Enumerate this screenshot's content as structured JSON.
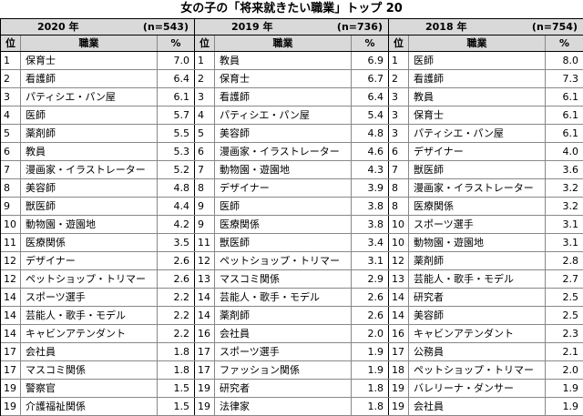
{
  "title": "女の子の「将来就きたい職業」トップ 20",
  "tables": [
    {
      "year": "2020 年",
      "n": "(n=543)",
      "columns": [
        "位",
        "職業",
        "%"
      ],
      "rows": [
        [
          "1",
          "保育士",
          "7.0"
        ],
        [
          "2",
          "看護師",
          "6.4"
        ],
        [
          "3",
          "パティシエ・パン屋",
          "6.1"
        ],
        [
          "4",
          "医師",
          "5.7"
        ],
        [
          "5",
          "薬剤師",
          "5.5"
        ],
        [
          "6",
          "教員",
          "5.3"
        ],
        [
          "7",
          "漫画家・イラストレーター",
          "5.2"
        ],
        [
          "8",
          "美容師",
          "4.8"
        ],
        [
          "9",
          "獣医師",
          "4.4"
        ],
        [
          "10",
          "動物園・遊園地",
          "4.2"
        ],
        [
          "11",
          "医療関係",
          "3.5"
        ],
        [
          "12",
          "デザイナー",
          "2.6"
        ],
        [
          "12",
          "ペットショップ・トリマー",
          "2.6"
        ],
        [
          "14",
          "スポーツ選手",
          "2.2"
        ],
        [
          "14",
          "芸能人・歌手・モデル",
          "2.2"
        ],
        [
          "14",
          "キャビンアテンダント",
          "2.2"
        ],
        [
          "17",
          "会社員",
          "1.8"
        ],
        [
          "17",
          "マスコミ関係",
          "1.8"
        ],
        [
          "19",
          "警察官",
          "1.5"
        ],
        [
          "19",
          "介護福祉関係",
          "1.5"
        ]
      ]
    },
    {
      "year": "2019 年",
      "n": "(n=736)",
      "columns": [
        "位",
        "職業",
        "%"
      ],
      "rows": [
        [
          "1",
          "教員",
          "6.9"
        ],
        [
          "2",
          "保育士",
          "6.7"
        ],
        [
          "3",
          "看護師",
          "6.4"
        ],
        [
          "4",
          "パティシエ・パン屋",
          "5.4"
        ],
        [
          "5",
          "美容師",
          "4.8"
        ],
        [
          "6",
          "漫画家・イラストレーター",
          "4.6"
        ],
        [
          "7",
          "動物園・遊園地",
          "4.3"
        ],
        [
          "8",
          "デザイナー",
          "3.9"
        ],
        [
          "9",
          "医師",
          "3.8"
        ],
        [
          "9",
          "医療関係",
          "3.8"
        ],
        [
          "11",
          "獣医師",
          "3.4"
        ],
        [
          "12",
          "ペットショップ・トリマー",
          "3.1"
        ],
        [
          "13",
          "マスコミ関係",
          "2.9"
        ],
        [
          "14",
          "芸能人・歌手・モデル",
          "2.6"
        ],
        [
          "14",
          "薬剤師",
          "2.6"
        ],
        [
          "16",
          "会社員",
          "2.0"
        ],
        [
          "17",
          "スポーツ選手",
          "1.9"
        ],
        [
          "17",
          "ファッション関係",
          "1.9"
        ],
        [
          "19",
          "研究者",
          "1.8"
        ],
        [
          "19",
          "法律家",
          "1.8"
        ]
      ]
    },
    {
      "year": "2018 年",
      "n": "(n=754)",
      "columns": [
        "位",
        "職業",
        "%"
      ],
      "rows": [
        [
          "1",
          "医師",
          "8.0"
        ],
        [
          "2",
          "看護師",
          "7.3"
        ],
        [
          "3",
          "教員",
          "6.1"
        ],
        [
          "3",
          "保育士",
          "6.1"
        ],
        [
          "3",
          "パティシエ・パン屋",
          "6.1"
        ],
        [
          "6",
          "デザイナー",
          "4.0"
        ],
        [
          "7",
          "獣医師",
          "3.6"
        ],
        [
          "8",
          "漫画家・イラストレーター",
          "3.2"
        ],
        [
          "8",
          "医療関係",
          "3.2"
        ],
        [
          "10",
          "スポーツ選手",
          "3.1"
        ],
        [
          "10",
          "動物園・遊園地",
          "3.1"
        ],
        [
          "12",
          "薬剤師",
          "2.8"
        ],
        [
          "13",
          "芸能人・歌手・モデル",
          "2.7"
        ],
        [
          "14",
          "研究者",
          "2.5"
        ],
        [
          "14",
          "美容師",
          "2.5"
        ],
        [
          "16",
          "キャビンアテンダント",
          "2.3"
        ],
        [
          "17",
          "公務員",
          "2.1"
        ],
        [
          "18",
          "ペットショップ・トリマー",
          "2.0"
        ],
        [
          "19",
          "バレリーナ・ダンサー",
          "1.9"
        ],
        [
          "19",
          "会社員",
          "1.9"
        ]
      ]
    }
  ]
}
